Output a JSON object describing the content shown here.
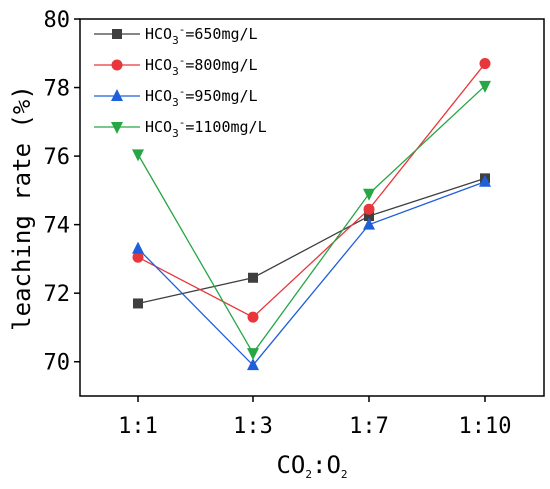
{
  "chart_data": {
    "type": "line",
    "categories": [
      "1:1",
      "1:3",
      "1:7",
      "1:10"
    ],
    "xlabel": {
      "main": "CO",
      "sub1": "2",
      "sep": ":O",
      "sub2": "2"
    },
    "ylabel": "leaching rate (%)",
    "ylim": [
      69,
      80
    ],
    "yticks": [
      70,
      72,
      74,
      76,
      78,
      80
    ],
    "grid": false,
    "legend_position": "top-left",
    "series": [
      {
        "name_prefix": "HCO",
        "name_sub": "3",
        "name_sup": "-",
        "name_suffix": "=650mg/L",
        "color": "#3f3f3f",
        "marker": "square",
        "values": [
          71.7,
          72.45,
          74.25,
          75.35
        ]
      },
      {
        "name_prefix": "HCO",
        "name_sub": "3",
        "name_sup": "-",
        "name_suffix": "=800mg/L",
        "color": "#e8373b",
        "marker": "circle",
        "values": [
          73.05,
          71.3,
          74.45,
          78.7
        ]
      },
      {
        "name_prefix": "HCO",
        "name_sub": "3",
        "name_sup": "-",
        "name_suffix": "=950mg/L",
        "color": "#1f5fdb",
        "marker": "triangle-up",
        "values": [
          73.3,
          69.9,
          74.0,
          75.25
        ]
      },
      {
        "name_prefix": "HCO",
        "name_sub": "3",
        "name_sup": "-",
        "name_suffix": "=1100mg/L",
        "color": "#26a644",
        "marker": "triangle-down",
        "values": [
          76.05,
          70.25,
          74.9,
          78.05
        ]
      }
    ]
  }
}
